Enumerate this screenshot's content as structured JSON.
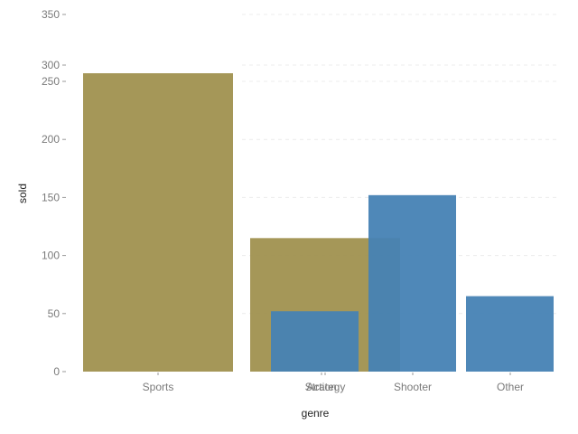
{
  "chart_data": {
    "type": "bar",
    "xlabel": "genre",
    "ylabel": "sold",
    "categories": [
      "Sports",
      "Action",
      "Strategy",
      "Shooter",
      "Other"
    ],
    "y_ticks": [
      0,
      50,
      100,
      150,
      200,
      250,
      300,
      350
    ],
    "grid": true,
    "series": [
      {
        "color": "#a0914f",
        "values": [
          {
            "category": "Sports",
            "value": 275
          },
          {
            "category": "Action",
            "value": 115
          }
        ]
      },
      {
        "color": "#4682b4",
        "values": [
          {
            "category": "Strategy",
            "value": 52
          },
          {
            "category": "Shooter",
            "value": 152
          },
          {
            "category": "Other",
            "value": 65
          }
        ]
      }
    ]
  }
}
